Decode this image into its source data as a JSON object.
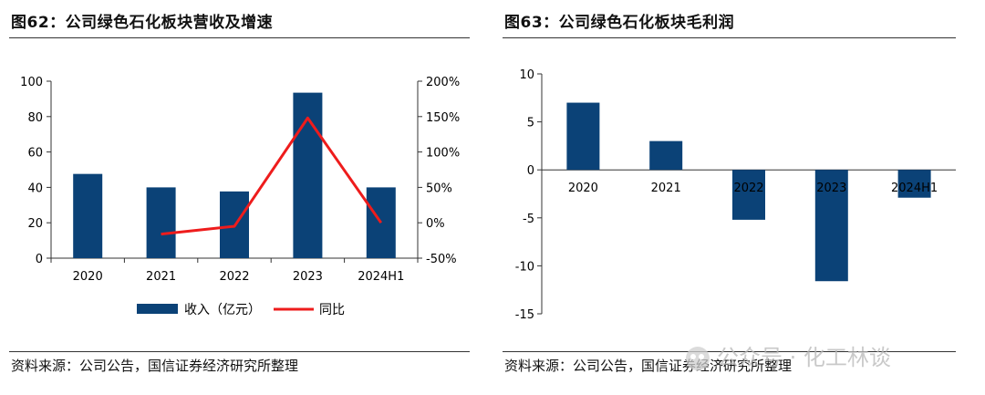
{
  "left": {
    "title": "图62：公司绿色石化板块营收及增速",
    "source": "资料来源：公司公告，国信证券经济研究所整理"
  },
  "right": {
    "title": "图63：公司绿色石化板块毛利润",
    "source": "资料来源：公司公告，国信证券经济研究所整理"
  },
  "watermark": {
    "text": "公众号 · 化工林谈"
  },
  "colors": {
    "bar": "#0b4277",
    "line": "#ee1c1c",
    "axis": "#333333"
  },
  "chart_data": [
    {
      "type": "bar",
      "categories": [
        "2020",
        "2021",
        "2022",
        "2023",
        "2024H1"
      ],
      "series": [
        {
          "name": "收入（亿元）",
          "type": "bar",
          "axis": "left",
          "values": [
            47.6,
            40.0,
            37.7,
            93.5,
            40.0
          ]
        },
        {
          "name": "同比",
          "type": "line",
          "axis": "right",
          "values": [
            null,
            -16,
            -5,
            148,
            0
          ]
        }
      ],
      "ylim": [
        0,
        100
      ],
      "yticks": [
        0,
        20,
        40,
        60,
        80,
        100
      ],
      "y2lim": [
        -50,
        200
      ],
      "y2ticks": [
        "-50%",
        "0%",
        "50%",
        "100%",
        "150%",
        "200%"
      ],
      "legend": "bottom"
    },
    {
      "type": "bar",
      "categories": [
        "2020",
        "2021",
        "2022",
        "2023",
        "2024H1"
      ],
      "values": [
        7.0,
        3.0,
        -5.2,
        -11.6,
        -2.9
      ],
      "ylim": [
        -15,
        10
      ],
      "yticks": [
        -15,
        -10,
        -5,
        0,
        5,
        10
      ]
    }
  ]
}
